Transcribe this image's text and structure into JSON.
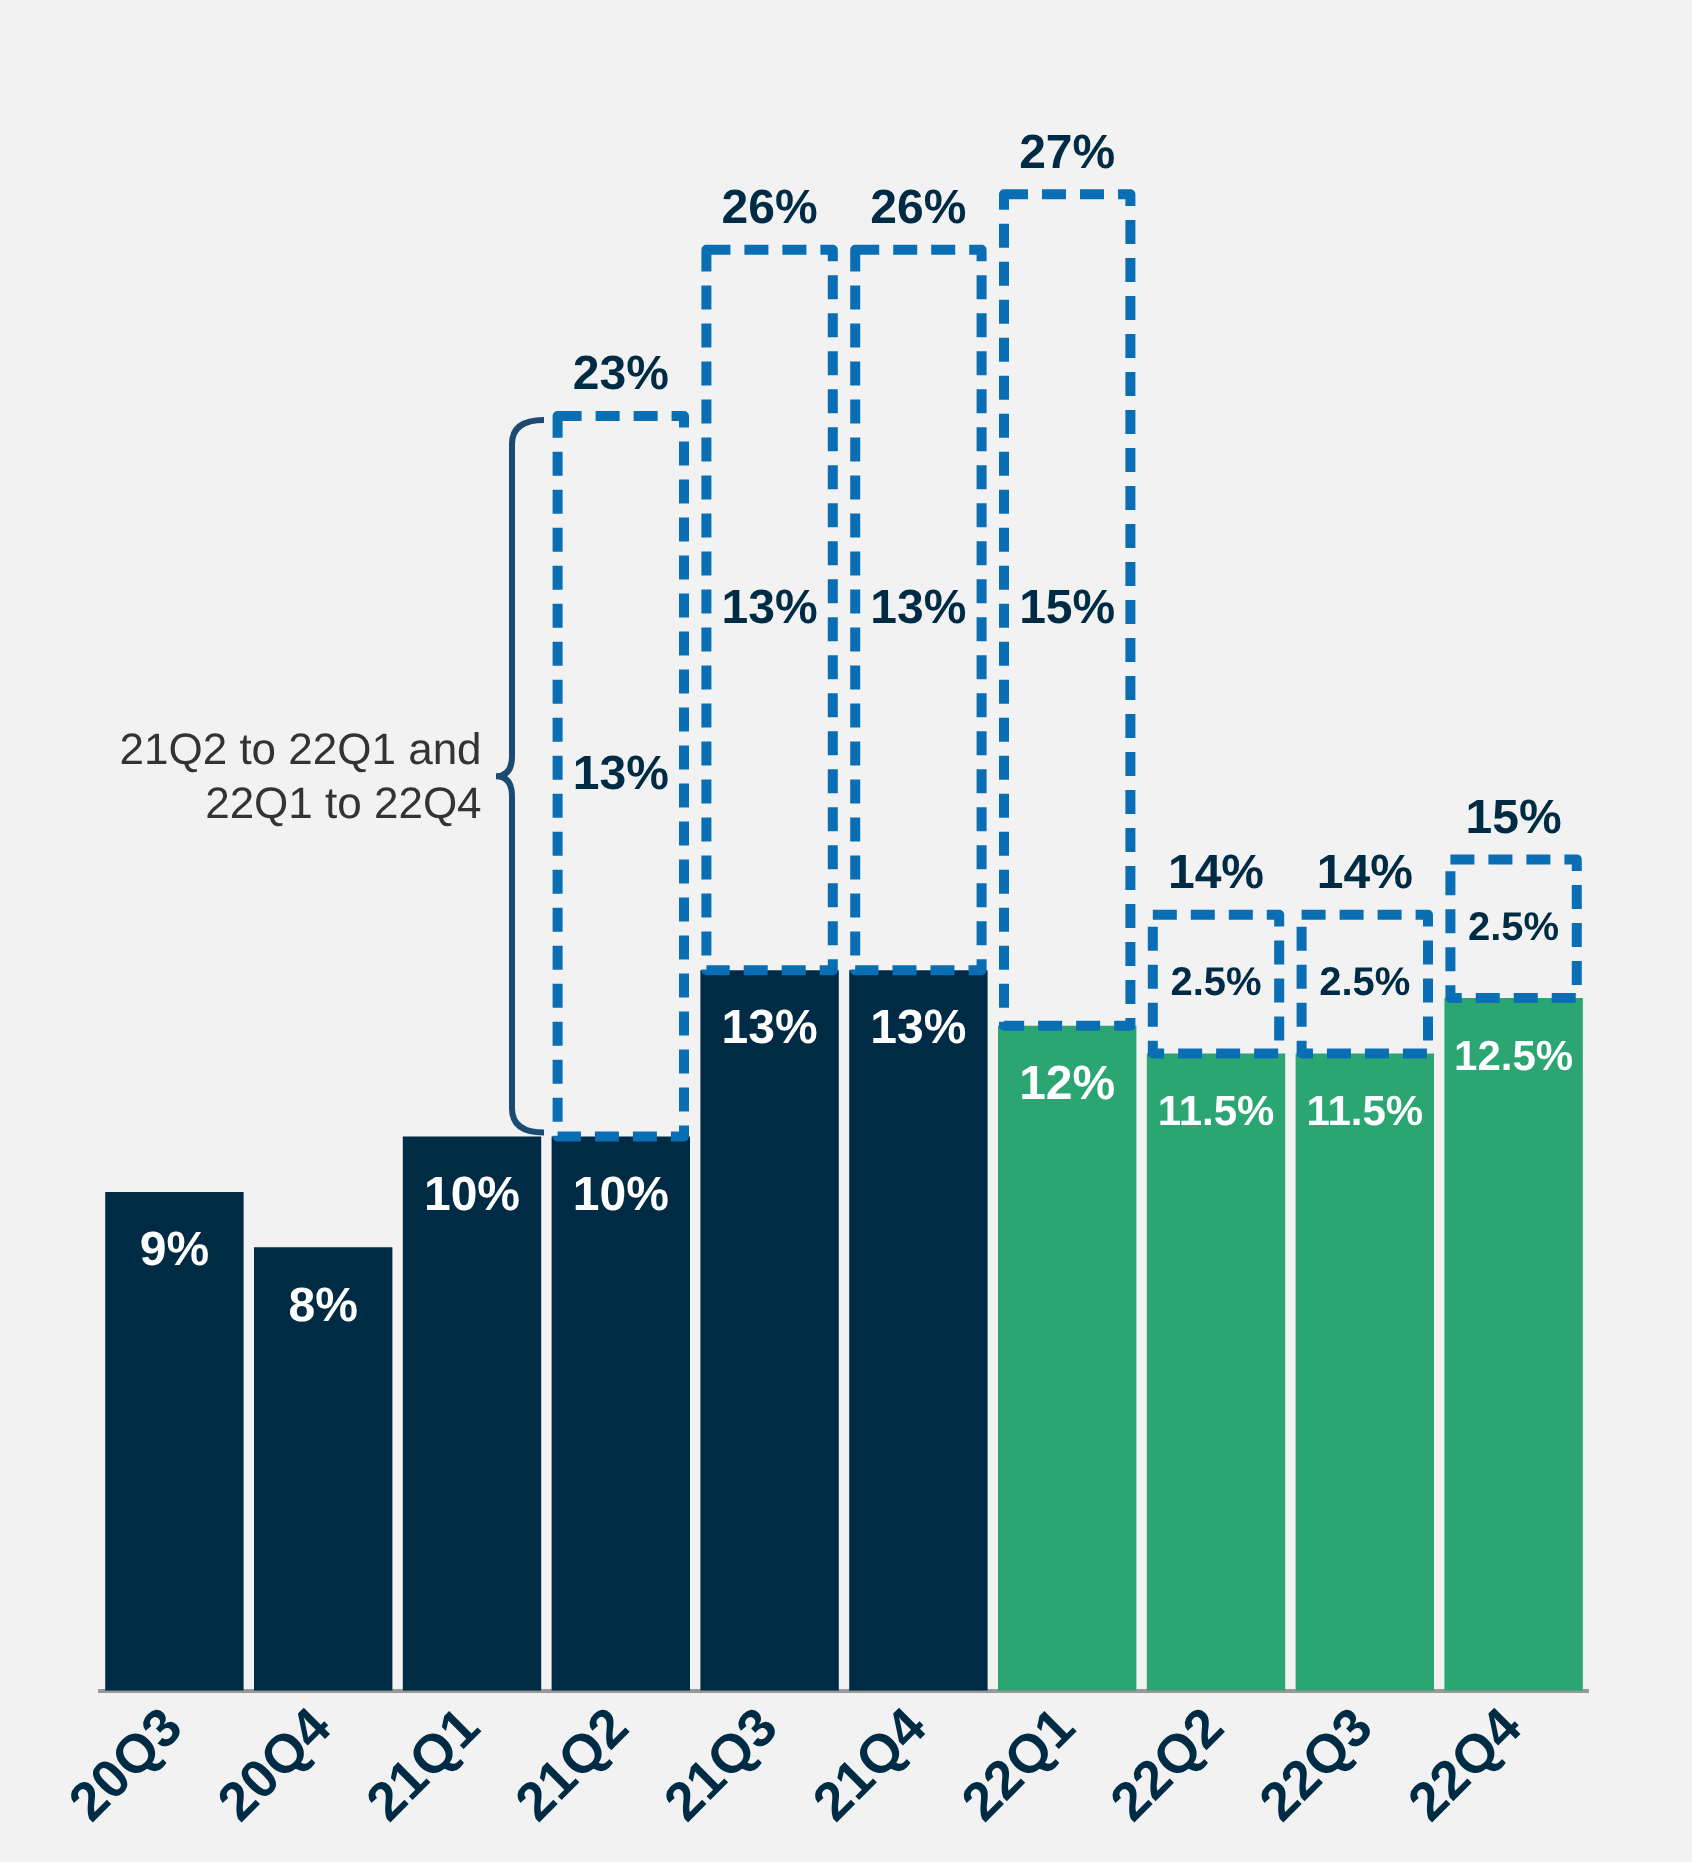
{
  "chart_data": {
    "type": "bar",
    "stacked": true,
    "categories": [
      "20Q3",
      "20Q4",
      "21Q1",
      "21Q2",
      "21Q3",
      "21Q4",
      "22Q1",
      "22Q2",
      "22Q3",
      "22Q4"
    ],
    "series": [
      {
        "colors": [
          "#002b45",
          "#002b45",
          "#002b45",
          "#002b45",
          "#002b45",
          "#002b45",
          "#2ba673",
          "#2ba673",
          "#2ba673",
          "#2ba673"
        ],
        "values": [
          9,
          8,
          10,
          10,
          13,
          13,
          12,
          11.5,
          11.5,
          12.5
        ],
        "value_labels": [
          "9%",
          "8%",
          "10%",
          "10%",
          "13%",
          "13%",
          "12%",
          "11.5%",
          "11.5%",
          "12.5%"
        ]
      },
      {
        "color": "#0a6eb4",
        "line_style": "dashed",
        "values": [
          null,
          null,
          null,
          13,
          13,
          13,
          15,
          2.5,
          2.5,
          2.5
        ],
        "value_labels": [
          null,
          null,
          null,
          "13%",
          "13%",
          "13%",
          "15%",
          "2.5%",
          "2.5%",
          "2.5%"
        ]
      }
    ],
    "totals": [
      null,
      null,
      null,
      "23%",
      "26%",
      "26%",
      "27%",
      "14%",
      "14%",
      "15%"
    ],
    "tick_labels": "x",
    "grid": false,
    "legend": false,
    "annotations": [
      "21Q2 to 22Q1 and 22Q1 to 22Q4"
    ]
  }
}
